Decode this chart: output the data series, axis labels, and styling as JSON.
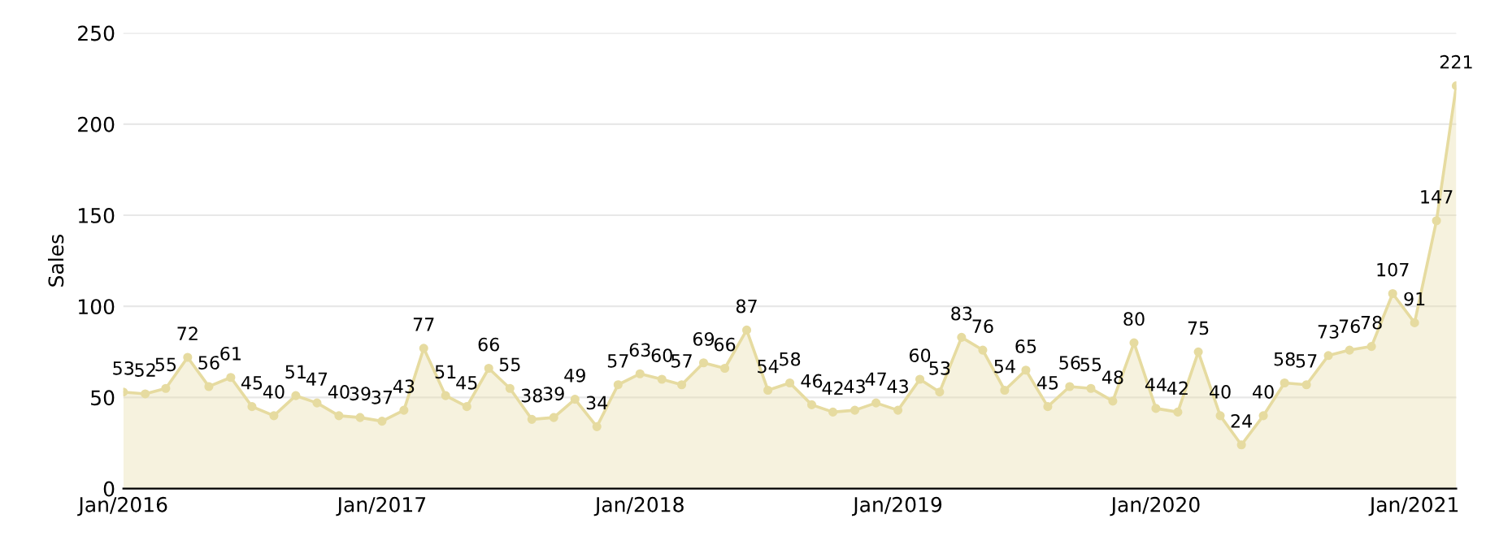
{
  "chart_data": {
    "type": "area",
    "ylabel": "Sales",
    "x": [
      "2016-01",
      "2016-02",
      "2016-03",
      "2016-04",
      "2016-05",
      "2016-06",
      "2016-07",
      "2016-08",
      "2016-09",
      "2016-10",
      "2016-11",
      "2016-12",
      "2017-01",
      "2017-02",
      "2017-03",
      "2017-04",
      "2017-05",
      "2017-06",
      "2017-07",
      "2017-08",
      "2017-09",
      "2017-10",
      "2017-11",
      "2017-12",
      "2018-01",
      "2018-02",
      "2018-03",
      "2018-04",
      "2018-05",
      "2018-06",
      "2018-07",
      "2018-08",
      "2018-09",
      "2018-10",
      "2018-11",
      "2018-12",
      "2019-01",
      "2019-02",
      "2019-03",
      "2019-04",
      "2019-05",
      "2019-06",
      "2019-07",
      "2019-08",
      "2019-09",
      "2019-10",
      "2019-11",
      "2019-12",
      "2020-01",
      "2020-02",
      "2020-03",
      "2020-04",
      "2020-05",
      "2020-06",
      "2020-07",
      "2020-08",
      "2020-09",
      "2020-10",
      "2020-11",
      "2020-12",
      "2021-01",
      "2021-02",
      "2021-03"
    ],
    "series": [
      {
        "color": "#e6dba0",
        "values": [
          53,
          52,
          55,
          72,
          56,
          61,
          45,
          40,
          51,
          47,
          40,
          39,
          37,
          43,
          77,
          51,
          45,
          66,
          55,
          38,
          39,
          49,
          34,
          57,
          63,
          60,
          57,
          69,
          66,
          87,
          54,
          58,
          46,
          42,
          43,
          47,
          43,
          60,
          53,
          83,
          76,
          54,
          65,
          45,
          56,
          55,
          48,
          80,
          44,
          42,
          75,
          40,
          24,
          40,
          58,
          57,
          73,
          76,
          78,
          107,
          91,
          147,
          221
        ]
      }
    ],
    "xlim": [
      "2016-01",
      "2021-03"
    ],
    "xticks": [
      {
        "value": "2016-01",
        "label": "Jan/2016"
      },
      {
        "value": "2017-01",
        "label": "Jan/2017"
      },
      {
        "value": "2018-01",
        "label": "Jan/2018"
      },
      {
        "value": "2019-01",
        "label": "Jan/2019"
      },
      {
        "value": "2020-01",
        "label": "Jan/2020"
      },
      {
        "value": "2021-01",
        "label": "Jan/2021"
      }
    ],
    "ylim": [
      0,
      250
    ],
    "yticks": [
      0,
      50,
      100,
      150,
      200,
      250
    ],
    "grid": "y",
    "marker": "circle",
    "data_labels": true
  }
}
